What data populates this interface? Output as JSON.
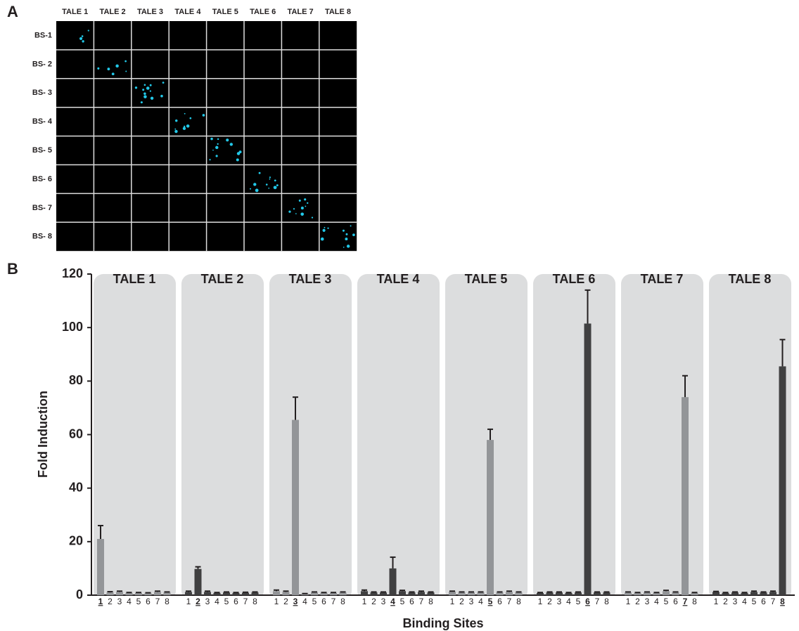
{
  "panel_a": {
    "label": "A",
    "columns": [
      "TALE 1",
      "TALE 2",
      "TALE 3",
      "TALE 4",
      "TALE 5",
      "TALE 6",
      "TALE 7",
      "TALE 8"
    ],
    "rows": [
      "BS-1",
      "BS- 2",
      "BS- 3",
      "BS- 4",
      "BS- 5",
      "BS- 6",
      "BS- 7",
      "BS- 8"
    ]
  },
  "chart_data": {
    "type": "bar",
    "panel_label": "B",
    "ylabel": "Fold Induction",
    "xlabel": "Binding Sites",
    "ylim": [
      0,
      120
    ],
    "yticks": [
      0,
      20,
      40,
      60,
      80,
      100,
      120
    ],
    "groups": [
      {
        "name": "TALE 1",
        "color": "#939598",
        "underline": 0,
        "categories": [
          "1",
          "2",
          "3",
          "4",
          "5",
          "6",
          "7",
          "8"
        ],
        "values": [
          21,
          1,
          1.2,
          0.8,
          0.8,
          0.7,
          1.2,
          1
        ],
        "errors": [
          5,
          0.3,
          0.3,
          0.2,
          0.2,
          0.2,
          0.3,
          0.2
        ]
      },
      {
        "name": "TALE 2",
        "color": "#404041",
        "underline": 1,
        "categories": [
          "1",
          "2",
          "3",
          "4",
          "5",
          "6",
          "7",
          "8"
        ],
        "values": [
          1.2,
          9.8,
          1.2,
          0.8,
          1,
          0.8,
          0.9,
          1
        ],
        "errors": [
          0.3,
          0.8,
          0.3,
          0.2,
          0.2,
          0.2,
          0.2,
          0.2
        ]
      },
      {
        "name": "TALE 3",
        "color": "#939598",
        "underline": 2,
        "categories": [
          "1",
          "2",
          "3",
          "4",
          "5",
          "6",
          "7",
          "8"
        ],
        "values": [
          1.5,
          1.2,
          65.5,
          0.5,
          1,
          0.8,
          0.8,
          1
        ],
        "errors": [
          0.4,
          0.3,
          8.5,
          0.1,
          0.2,
          0.2,
          0.2,
          0.2
        ]
      },
      {
        "name": "TALE 4",
        "color": "#404041",
        "underline": 3,
        "categories": [
          "1",
          "2",
          "3",
          "4",
          "5",
          "6",
          "7",
          "8"
        ],
        "values": [
          1.5,
          1,
          1,
          10,
          1.5,
          1,
          1.2,
          1
        ],
        "errors": [
          0.4,
          0.2,
          0.2,
          4.2,
          0.3,
          0.2,
          0.3,
          0.2
        ]
      },
      {
        "name": "TALE 5",
        "color": "#939598",
        "underline": 4,
        "categories": [
          "1",
          "2",
          "3",
          "4",
          "5",
          "6",
          "7",
          "8"
        ],
        "values": [
          1.3,
          1,
          1,
          1,
          58,
          1,
          1.2,
          1
        ],
        "errors": [
          0.2,
          0.2,
          0.2,
          0.2,
          4,
          0.2,
          0.3,
          0.2
        ]
      },
      {
        "name": "TALE 6",
        "color": "#404041",
        "underline": 5,
        "categories": [
          "1",
          "2",
          "3",
          "4",
          "5",
          "6",
          "7",
          "8"
        ],
        "values": [
          0.8,
          1,
          1,
          0.8,
          1,
          101.5,
          1,
          1
        ],
        "errors": [
          0.2,
          0.2,
          0.2,
          0.2,
          0.2,
          12.5,
          0.2,
          0.2
        ]
      },
      {
        "name": "TALE 7",
        "color": "#939598",
        "underline": 6,
        "categories": [
          "1",
          "2",
          "3",
          "4",
          "5",
          "6",
          "7",
          "8"
        ],
        "values": [
          1,
          0.8,
          1,
          0.8,
          1.5,
          1,
          74,
          0.8
        ],
        "errors": [
          0.2,
          0.2,
          0.2,
          0.2,
          0.3,
          0.2,
          8,
          0.2
        ]
      },
      {
        "name": "TALE 8",
        "color": "#404041",
        "underline": 7,
        "categories": [
          "1",
          "2",
          "3",
          "4",
          "5",
          "6",
          "7",
          "8"
        ],
        "values": [
          1.2,
          0.8,
          1,
          0.8,
          1.2,
          1,
          1.2,
          85.5
        ],
        "errors": [
          0.2,
          0.2,
          0.2,
          0.2,
          0.3,
          0.2,
          0.3,
          10
        ]
      }
    ]
  }
}
